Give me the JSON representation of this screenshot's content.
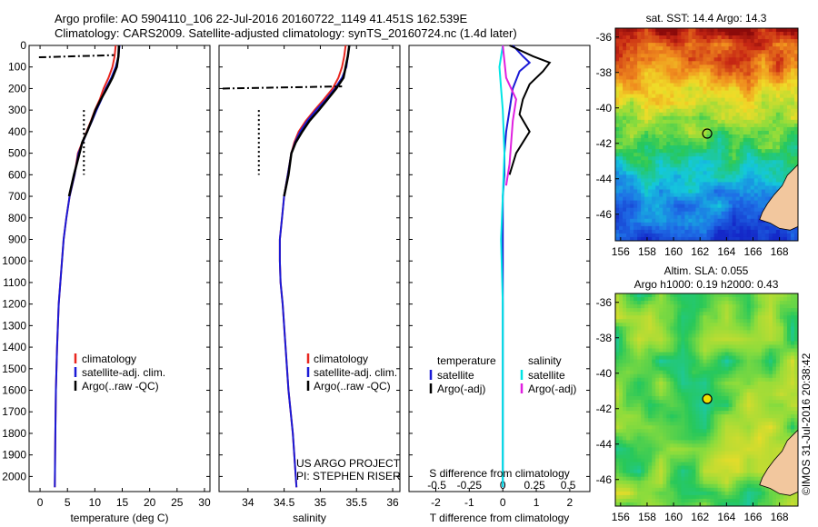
{
  "header": {
    "line1": "Argo profile: AO 5904110_106 22-Jul-2016 20160722_1149 41.451S 162.539E",
    "line2": "Climatology: CARS2009. Satellite-adjusted climatology: synTS_20160724.nc (1.4d later)"
  },
  "side_label": "©IMOS 31-Jul-2016 20:38:42",
  "colors": {
    "clim": "#e8261f",
    "sat": "#1a1ad6",
    "argo": "#000000",
    "sal_sat": "#00e5e5",
    "sal_argo": "#e020e0"
  },
  "chart_data": [
    {
      "id": "temperature",
      "type": "line",
      "xlabel": "temperature (deg C)",
      "ylabel": "",
      "xlim": [
        -2,
        31
      ],
      "ylim": [
        2070,
        0
      ],
      "xticks": [
        "0",
        "5",
        "10",
        "15",
        "20",
        "25",
        "30"
      ],
      "xtick_values": [
        0,
        5,
        10,
        15,
        20,
        25,
        30
      ],
      "yticks": [
        "0",
        "100",
        "200",
        "300",
        "400",
        "500",
        "600",
        "700",
        "800",
        "900",
        "1000",
        "1100",
        "1200",
        "1300",
        "1400",
        "1500",
        "1600",
        "1700",
        "1800",
        "1900",
        "2000"
      ],
      "ytick_values": [
        0,
        100,
        200,
        300,
        400,
        500,
        600,
        700,
        800,
        900,
        1000,
        1100,
        1200,
        1300,
        1400,
        1500,
        1600,
        1700,
        1800,
        1900,
        2000
      ],
      "legend": [
        "climatology",
        "satellite-adj. clim.",
        "Argo(..raw -QC)"
      ],
      "series": [
        {
          "name": "climatology",
          "color": "#e8261f",
          "x": [
            13.8,
            13.6,
            13.2,
            12.5,
            11.6,
            10.9,
            10.0,
            9.3,
            8.5,
            7.7,
            6.9,
            6.3,
            5.4,
            4.8,
            4.3,
            4.0,
            3.7,
            3.4,
            3.1,
            2.9,
            2.8,
            2.7
          ],
          "y": [
            0,
            50,
            100,
            150,
            200,
            250,
            300,
            350,
            400,
            450,
            500,
            600,
            700,
            800,
            900,
            1000,
            1100,
            1200,
            1400,
            1600,
            1800,
            2050
          ]
        },
        {
          "name": "satellite-adj. clim.",
          "color": "#1a1ad6",
          "x": [
            14.5,
            14.3,
            13.8,
            13.0,
            12.0,
            11.2,
            10.3,
            9.5,
            8.6,
            7.8,
            7.0,
            6.3,
            5.4,
            4.8,
            4.3,
            4.0,
            3.7,
            3.4,
            3.1,
            2.9,
            2.8,
            2.7
          ],
          "y": [
            0,
            50,
            100,
            150,
            200,
            250,
            300,
            350,
            400,
            450,
            500,
            600,
            700,
            800,
            900,
            1000,
            1100,
            1200,
            1400,
            1600,
            1800,
            2050
          ]
        },
        {
          "name": "Argo(..raw -QC)",
          "color": "#000000",
          "x": [
            14.4,
            14.3,
            14.0,
            13.2,
            12.2,
            11.1,
            10.1,
            9.4,
            8.6,
            7.7,
            7.2,
            6.2,
            5.3
          ],
          "y": [
            0,
            50,
            100,
            150,
            200,
            250,
            300,
            350,
            400,
            450,
            500,
            600,
            700
          ]
        }
      ]
    },
    {
      "id": "salinity",
      "type": "line",
      "xlabel": "salinity",
      "ylabel": "",
      "xlim": [
        33.6,
        36.1
      ],
      "ylim": [
        2070,
        0
      ],
      "xticks": [
        "34",
        "34.5",
        "35",
        "35.5",
        "36"
      ],
      "xtick_values": [
        34,
        34.5,
        35,
        35.5,
        36
      ],
      "legend": [
        "climatology",
        "satellite-adj. clim.",
        "Argo(..raw -QC)"
      ],
      "annotation": [
        "US ARGO PROJECT",
        "PI: STEPHEN RISER"
      ],
      "series": [
        {
          "name": "climatology",
          "color": "#e8261f",
          "x": [
            35.35,
            35.33,
            35.3,
            35.25,
            35.17,
            35.05,
            34.92,
            34.8,
            34.7,
            34.64,
            34.6,
            34.55,
            34.5,
            34.47,
            34.44,
            34.44,
            34.45,
            34.48,
            34.52,
            34.56,
            34.62,
            34.67
          ],
          "y": [
            0,
            50,
            100,
            150,
            200,
            250,
            300,
            350,
            400,
            450,
            500,
            600,
            700,
            800,
            900,
            1000,
            1100,
            1200,
            1400,
            1600,
            1800,
            2050
          ]
        },
        {
          "name": "satellite-adj. clim.",
          "color": "#1a1ad6",
          "x": [
            35.4,
            35.38,
            35.36,
            35.3,
            35.2,
            35.08,
            34.94,
            34.82,
            34.72,
            34.65,
            34.6,
            34.55,
            34.5,
            34.47,
            34.44,
            34.44,
            34.45,
            34.48,
            34.52,
            34.56,
            34.62,
            34.67
          ],
          "y": [
            0,
            50,
            100,
            150,
            200,
            250,
            300,
            350,
            400,
            450,
            500,
            600,
            700,
            800,
            900,
            1000,
            1100,
            1200,
            1400,
            1600,
            1800,
            2050
          ]
        },
        {
          "name": "Argo(..raw -QC)",
          "color": "#000000",
          "x": [
            35.4,
            35.38,
            35.35,
            35.32,
            35.22,
            35.1,
            34.98,
            34.85,
            34.75,
            34.66,
            34.6,
            34.56,
            34.5
          ],
          "y": [
            0,
            50,
            100,
            150,
            200,
            250,
            300,
            350,
            400,
            450,
            500,
            600,
            700
          ]
        }
      ]
    },
    {
      "id": "difference",
      "type": "line",
      "xlabel": "T difference from climatology",
      "xlabel_top": "S difference from climatology",
      "xlim": [
        -2.8,
        2.6
      ],
      "ylim": [
        2070,
        0
      ],
      "xticks": [
        "-2",
        "-1",
        "0",
        "1",
        "2"
      ],
      "xtick_values": [
        -2,
        -1,
        0,
        1,
        2
      ],
      "xticks_top": [
        "-0.5",
        "-0.25",
        "0",
        "0.25",
        "0.5"
      ],
      "legend_temperature": {
        "title": "temperature",
        "items": [
          "satellite",
          "Argo(-adj)"
        ]
      },
      "legend_salinity": {
        "title": "salinity",
        "items": [
          "satellite",
          "Argo(-adj)"
        ]
      },
      "series": [
        {
          "name": "satellite",
          "color": "#1a1ad6",
          "x": [
            0.3,
            0.6,
            0.8,
            0.5,
            0.3,
            0.2,
            0.1,
            0.05,
            0.05,
            0.0,
            0.0,
            0.0,
            0.0,
            0.0,
            0.0
          ],
          "y": [
            0,
            50,
            80,
            120,
            200,
            300,
            400,
            500,
            600,
            700,
            800,
            1000,
            1400,
            1800,
            2050
          ]
        },
        {
          "name": "Argo(-adj)",
          "color": "#000000",
          "x": [
            0.2,
            0.9,
            1.4,
            1.2,
            0.8,
            0.6,
            0.5,
            0.8,
            0.6,
            0.4,
            0.3,
            0.2
          ],
          "y": [
            0,
            50,
            80,
            120,
            180,
            250,
            320,
            400,
            450,
            500,
            550,
            600
          ]
        },
        {
          "name": "salinity satellite",
          "color": "#00e5e5",
          "x": [
            0.0,
            -0.1,
            -0.05,
            0.0,
            0.05,
            0.0,
            -0.05,
            0.0,
            0.0,
            0.0
          ],
          "y": [
            0,
            100,
            200,
            300,
            500,
            700,
            900,
            1200,
            1600,
            2050
          ]
        },
        {
          "name": "salinity Argo(-adj)",
          "color": "#e020e0",
          "x": [
            0.0,
            0.1,
            0.4,
            0.3,
            0.25,
            0.2,
            0.1
          ],
          "y": [
            0,
            150,
            250,
            350,
            450,
            550,
            650
          ]
        }
      ]
    },
    {
      "id": "sst_map",
      "type": "heatmap",
      "title": "sat. SST: 14.4  Argo: 14.3",
      "xlim": [
        155.6,
        169.4
      ],
      "ylim": [
        -47.5,
        -35.5
      ],
      "xticks": [
        "156",
        "158",
        "160",
        "162",
        "164",
        "166",
        "168"
      ],
      "xtick_values": [
        156,
        158,
        160,
        162,
        164,
        166,
        168
      ],
      "yticks": [
        "-36",
        "-38",
        "-40",
        "-42",
        "-44",
        "-46"
      ],
      "ytick_values": [
        -36,
        -38,
        -40,
        -42,
        -44,
        -46
      ],
      "marker": {
        "lon": 162.54,
        "lat": -41.45
      }
    },
    {
      "id": "sla_map",
      "type": "heatmap",
      "title": "Altim. SLA: 0.055",
      "subtitle": "Argo h1000: 0.19  h2000: 0.43",
      "xlim": [
        155.6,
        169.4
      ],
      "ylim": [
        -47.5,
        -35.5
      ],
      "xticks": [
        "156",
        "158",
        "160",
        "162",
        "164",
        "166",
        "168"
      ],
      "xtick_values": [
        156,
        158,
        160,
        162,
        164,
        166,
        168
      ],
      "yticks": [
        "-36",
        "-38",
        "-40",
        "-42",
        "-44",
        "-46"
      ],
      "ytick_values": [
        -36,
        -38,
        -40,
        -42,
        -44,
        -46
      ],
      "marker": {
        "lon": 162.54,
        "lat": -41.45
      }
    }
  ]
}
